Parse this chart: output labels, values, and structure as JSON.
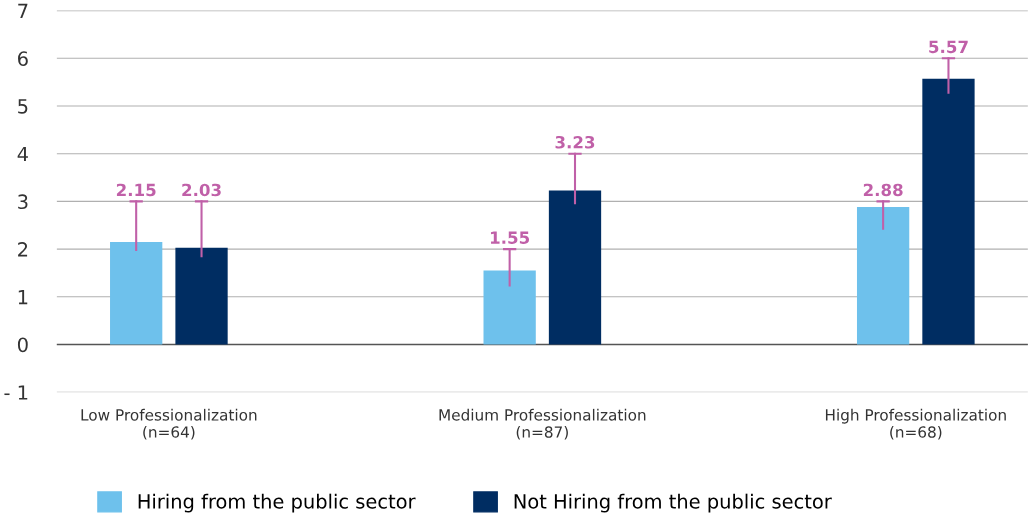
{
  "chart_data": {
    "type": "bar",
    "categories": [
      "Low Professionalization\n(n=64)",
      "Medium Professionalization\n(n=87)",
      "High Professionalization\n(n=68)"
    ],
    "series": [
      {
        "name": "Hiring from the public sector",
        "color": "#6ec1ec",
        "values": [
          2.15,
          1.55,
          2.88
        ],
        "errors": [
          [
            1.98,
            3.0
          ],
          [
            1.24,
            2.0
          ],
          [
            2.43,
            3.0
          ]
        ]
      },
      {
        "name": "Not Hiring from the public sector",
        "color": "#002d62",
        "values": [
          2.03,
          3.23,
          5.57
        ],
        "errors": [
          [
            1.85,
            3.0
          ],
          [
            2.96,
            4.0
          ],
          [
            5.28,
            6.0
          ]
        ]
      }
    ],
    "ylim": [
      -1,
      7
    ],
    "yticks": [
      {
        "value": -1,
        "label": "- 1"
      },
      0,
      1,
      2,
      3,
      4,
      5,
      6,
      7
    ],
    "grid": "y",
    "legend": "bottom",
    "data_labels": true
  }
}
